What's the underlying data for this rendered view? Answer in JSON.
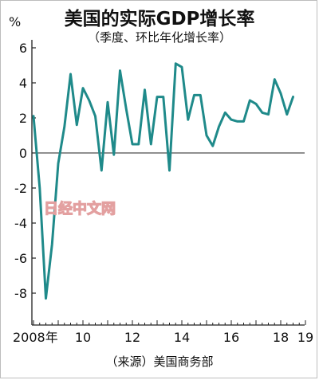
{
  "header": {
    "title": "美国的实际GDP增长率",
    "subtitle": "（季度、环比年化增长率）",
    "unit": "%"
  },
  "footer": {
    "source": "（来源）美国商务部"
  },
  "watermark": {
    "text": "日经中文网"
  },
  "chart_data": {
    "type": "line",
    "title": "美国的实际GDP增长率",
    "subtitle": "（季度、环比年化增长率）",
    "ylabel": "%",
    "ylim": [
      -10,
      6.5
    ],
    "y_ticks": [
      6,
      4,
      2,
      0,
      -2,
      -4,
      -6,
      -8
    ],
    "y_tick_labels": [
      "6",
      "4",
      "2",
      "0",
      "-2",
      "-4",
      "-6",
      "-8"
    ],
    "x_ticks": [
      {
        "label": "2008年",
        "t": 0
      },
      {
        "label": "10",
        "t": 8
      },
      {
        "label": "12",
        "t": 16
      },
      {
        "label": "14",
        "t": 24
      },
      {
        "label": "16",
        "t": 32
      },
      {
        "label": "18",
        "t": 40
      },
      {
        "label": "19",
        "t": 44
      }
    ],
    "x_quarter_start": "2008 Q1",
    "values": [
      2.1,
      -2.0,
      -8.3,
      -5.2,
      -0.6,
      1.5,
      4.5,
      1.6,
      3.7,
      3.0,
      2.1,
      -1.0,
      2.9,
      -0.1,
      4.7,
      2.5,
      0.5,
      0.5,
      3.6,
      0.5,
      3.2,
      3.2,
      -1.0,
      5.1,
      4.9,
      1.9,
      3.3,
      3.3,
      1.0,
      0.4,
      1.5,
      2.3,
      1.9,
      1.8,
      1.8,
      3.0,
      2.8,
      2.3,
      2.2,
      4.2,
      3.4,
      2.2,
      3.2
    ],
    "series_color": "#1f8a8a",
    "grid": false,
    "zero_line": true
  }
}
